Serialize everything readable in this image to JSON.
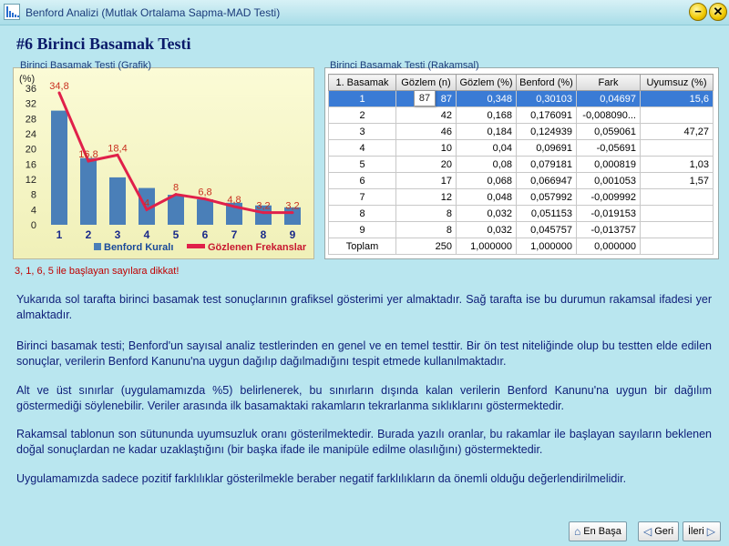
{
  "window": {
    "title": "Benford Analizi (Mutlak Ortalama Sapma-MAD Testi)",
    "minimize_label": "−",
    "close_label": "✕"
  },
  "page": {
    "title": "#6 Birinci Basamak Testi"
  },
  "chart_caption": "Birinci Basamak Testi (Grafik)",
  "table_caption": "Birinci Basamak Testi (Rakamsal)",
  "chart_data": {
    "type": "bar",
    "ylabel": "(%)",
    "ylim": [
      0,
      36
    ],
    "yticks": [
      0,
      4,
      8,
      12,
      16,
      20,
      24,
      28,
      32,
      36
    ],
    "categories": [
      "1",
      "2",
      "3",
      "4",
      "5",
      "6",
      "7",
      "8",
      "9"
    ],
    "series": [
      {
        "name": "Benford Kuralı",
        "type": "bar",
        "color": "#4a7fb8",
        "values": [
          30.1,
          17.6,
          12.5,
          9.7,
          7.9,
          6.7,
          5.8,
          5.1,
          4.6
        ]
      },
      {
        "name": "Gözlenen Frekanslar",
        "type": "line",
        "color": "#e0204a",
        "values": [
          34.8,
          16.8,
          18.4,
          4,
          8,
          6.8,
          4.8,
          3.2,
          3.2
        ],
        "labels": [
          "34,8",
          "16,8",
          "18,4",
          "4",
          "8",
          "6,8",
          "4,8",
          "3,2",
          "3,2"
        ]
      }
    ],
    "legend": "bottom-right"
  },
  "table": {
    "headers": [
      "1. Basamak",
      "Gözlem (n)",
      "Gözlem (%)",
      "Benford (%)",
      "Fark",
      "Uyumsuz (%)"
    ],
    "rows": [
      [
        "1",
        "87",
        "0,348",
        "0,30103",
        "0,04697",
        "15,6"
      ],
      [
        "2",
        "42",
        "0,168",
        "0,176091",
        "-0,008090...",
        ""
      ],
      [
        "3",
        "46",
        "0,184",
        "0,124939",
        "0,059061",
        "47,27"
      ],
      [
        "4",
        "10",
        "0,04",
        "0,09691",
        "-0,05691",
        ""
      ],
      [
        "5",
        "20",
        "0,08",
        "0,079181",
        "0,000819",
        "1,03"
      ],
      [
        "6",
        "17",
        "0,068",
        "0,066947",
        "0,001053",
        "1,57"
      ],
      [
        "7",
        "12",
        "0,048",
        "0,057992",
        "-0,009992",
        ""
      ],
      [
        "8",
        "8",
        "0,032",
        "0,051153",
        "-0,019153",
        ""
      ],
      [
        "9",
        "8",
        "0,032",
        "0,045757",
        "-0,013757",
        ""
      ],
      [
        "Toplam",
        "250",
        "1,000000",
        "1,000000",
        "0,000000",
        ""
      ]
    ],
    "selected_row": 0,
    "tooltip": "87"
  },
  "warning": "3, 1, 6, 5 ile başlayan sayılara dikkat!",
  "paragraphs": [
    "Yukarıda sol tarafta birinci basamak test sonuçlarının grafiksel gösterimi yer almaktadır. Sağ tarafta ise bu durumun rakamsal ifadesi yer almaktadır.",
    "Birinci basamak testi; Benford'un sayısal analiz testlerinden en genel ve en temel testtir. Bir ön test niteliğinde olup bu testten elde edilen sonuçlar, verilerin Benford Kanunu'na uygun dağılıp dağılmadığını tespit etmede kullanılmaktadır.",
    "Alt ve üst sınırlar (uygulamamızda %5) belirlenerek, bu sınırların dışında kalan verilerin Benford Kanunu'na uygun bir dağılım göstermediği söylenebilir. Veriler arasında ilk basamaktaki rakamların tekrarlanma sıklıklarını göstermektedir.",
    "Rakamsal tablonun son sütununda uyumsuzluk oranı gösterilmektedir. Burada yazılı oranlar, bu rakamlar ile başlayan sayıların beklenen doğal sonuçlardan ne kadar uzaklaştığını (bir başka ifade ile manipüle edilme olasılığını) göstermektedir.",
    "Uygulamamızda sadece pozitif farklılıklar gösterilmekle beraber negatif farklılıkların da  önemli olduğu değerlendirilmelidir."
  ],
  "nav": {
    "home_label": "En Başa",
    "back_label": "Geri",
    "next_label": "İleri"
  },
  "icons": {
    "home": "home-icon",
    "back": "back-arrow-icon",
    "next": "next-arrow-icon"
  }
}
